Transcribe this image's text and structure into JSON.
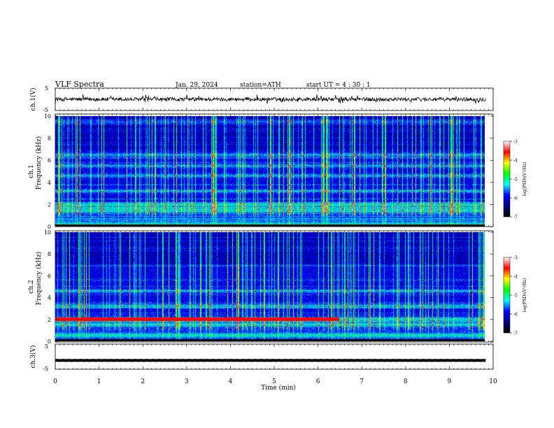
{
  "header": {
    "title": "VLF  Spectra",
    "date": "Jan. 29, 2024",
    "station": "station=ATH",
    "start": "start  UT  =   4  : 30 : 1"
  },
  "colorbar": {
    "label": "log(PSD)(V²/Hz)",
    "ticks": [
      "-3",
      "-4",
      "-5",
      "-6",
      "-7"
    ],
    "colors": [
      "#ffffff",
      "#ff0000",
      "#ffff00",
      "#00ff00",
      "#00ffff",
      "#0000ff",
      "#000080",
      "#000000"
    ]
  },
  "chart_data": [
    {
      "name": "ch1-waveform",
      "type": "line",
      "ylabel": "ch.1(V)",
      "yticks": [
        "5",
        "-5"
      ],
      "ylim": [
        -5,
        5
      ],
      "xlim": [
        0,
        10
      ],
      "approx_level": 0,
      "approx_amplitude": 1.2
    },
    {
      "name": "ch1-spectrogram",
      "type": "heatmap",
      "ylabel_line1": "ch.1",
      "ylabel_line2": "Frequency  (kHz)",
      "yticks": [
        "0",
        "2",
        "4",
        "6",
        "8",
        "10"
      ],
      "ylim": [
        0,
        10
      ],
      "xlim": [
        0,
        9.83
      ],
      "log_psd_range": [
        -7,
        -3
      ],
      "dominant_bands_khz": [
        0.2,
        1.5,
        2.0,
        3.2,
        4.6,
        5.5,
        6.5,
        9.5
      ],
      "red_band": null
    },
    {
      "name": "ch2-spectrogram",
      "type": "heatmap",
      "ylabel_line1": "ch.2",
      "ylabel_line2": "Frequency  (kHz)",
      "yticks": [
        "0",
        "2",
        "4",
        "6",
        "8",
        "10"
      ],
      "ylim": [
        0,
        10
      ],
      "xlim": [
        0,
        9.83
      ],
      "log_psd_range": [
        -7,
        -3
      ],
      "dominant_bands_khz": [
        0.5,
        1.5,
        2.0,
        3.2,
        4.6
      ],
      "red_band": {
        "freq_khz": 2.0,
        "t_start": 0,
        "t_end": 6.5
      }
    },
    {
      "name": "ch3-waveform",
      "type": "line",
      "ylabel": "ch.3(V)",
      "yticks": [
        "5",
        "-5"
      ],
      "ylim": [
        -5,
        5
      ],
      "xlim": [
        0,
        10
      ],
      "approx_level": -1.5,
      "approx_amplitude": 0.1
    }
  ],
  "xaxis": {
    "label": "Time  (min)",
    "ticks": [
      "0",
      "1",
      "2",
      "3",
      "4",
      "5",
      "6",
      "7",
      "8",
      "9",
      "10"
    ]
  }
}
